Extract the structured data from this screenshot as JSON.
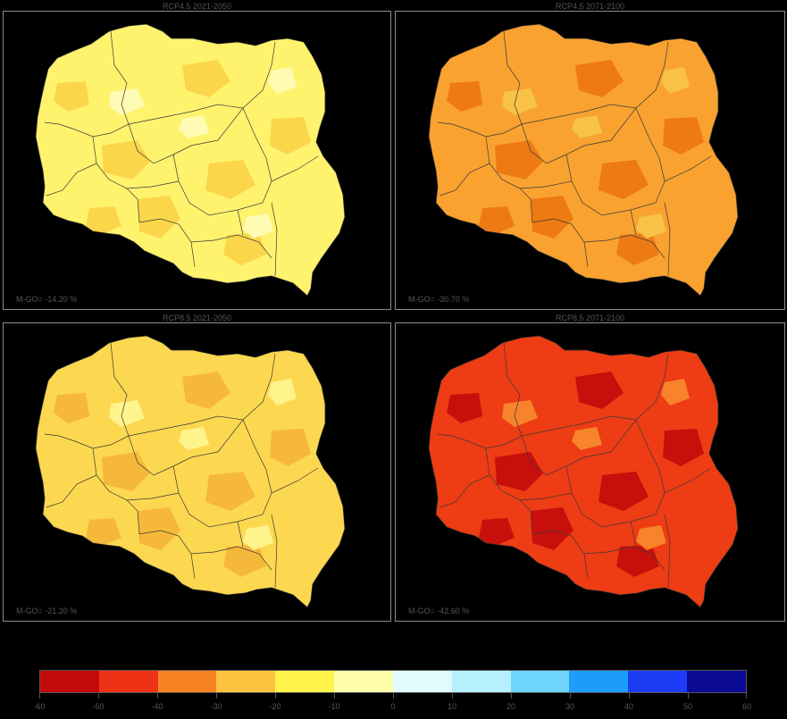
{
  "panels": [
    {
      "title": "RCP4.5 2021-2050",
      "mean_label": "M-GO= -14.20 %",
      "fill": "#fff36e",
      "patch": "#fbd64a",
      "light": "#fffbb4"
    },
    {
      "title": "RCP4.5 2071-2100",
      "mean_label": "M-GO= -30.70 %",
      "fill": "#f9a230",
      "patch": "#ee7a14",
      "light": "#f8c248"
    },
    {
      "title": "RCP8.5 2021-2050",
      "mean_label": "M-GO= -21.20 %",
      "fill": "#fcd850",
      "patch": "#f6b83a",
      "light": "#fff38c"
    },
    {
      "title": "RCP8.5 2071-2100",
      "mean_label": "M-GO= -42.60 %",
      "fill": "#ee3c14",
      "patch": "#c80f0c",
      "light": "#f7842a"
    }
  ],
  "colorbar": {
    "colors": [
      "#c40a0a",
      "#ed3216",
      "#f78222",
      "#fbc33f",
      "#fff34c",
      "#ffffaa",
      "#e0fafe",
      "#b4f0fe",
      "#6fd4fe",
      "#1e9cfa",
      "#1c3df5",
      "#0a0a95"
    ],
    "tick_labels": [
      "-60",
      "-50",
      "-40",
      "-30",
      "-20",
      "-10",
      "0",
      "10",
      "20",
      "30",
      "40",
      "50",
      "60"
    ]
  }
}
